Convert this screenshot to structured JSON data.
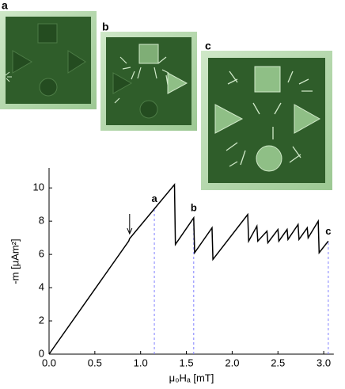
{
  "image_labels": [
    "a",
    "b",
    "c"
  ],
  "chart_data": {
    "type": "line",
    "x_label": "μ₀Hₐ [mT]",
    "y_label": "-m [μAm²]",
    "x": [
      0,
      0.87,
      0.88,
      1.37,
      1.38,
      1.58,
      1.59,
      1.78,
      1.79,
      2.17,
      2.18,
      2.27,
      2.28,
      2.38,
      2.39,
      2.5,
      2.51,
      2.6,
      2.61,
      2.72,
      2.73,
      2.82,
      2.83,
      2.94,
      2.95,
      3.05
    ],
    "values": [
      0,
      6.8,
      6.95,
      10.2,
      6.6,
      8.2,
      6.1,
      7.6,
      5.7,
      8.4,
      6.8,
      7.7,
      6.8,
      7.4,
      6.7,
      7.5,
      6.8,
      7.5,
      6.9,
      7.8,
      6.9,
      7.6,
      7.0,
      8.0,
      6.1,
      6.8
    ],
    "color": "#000000",
    "vlines": [
      {
        "x": 1.15,
        "label": "a"
      },
      {
        "x": 1.58,
        "label": "b"
      },
      {
        "x": 3.05,
        "label": "c"
      }
    ],
    "vline_color": "#8080ff",
    "arrow": {
      "x": 0.88,
      "y": 7.1
    },
    "xlim": [
      0,
      3.11
    ],
    "ylim": [
      0,
      11.2
    ],
    "xticks": [
      {
        "value": 0,
        "label": "0.0"
      },
      {
        "value": 0.5,
        "label": "0.5"
      },
      {
        "value": 1,
        "label": "1.0"
      },
      {
        "value": 1.5,
        "label": "1.5"
      },
      {
        "value": 2,
        "label": "2.0"
      },
      {
        "value": 2.5,
        "label": "2.5"
      },
      {
        "value": 3,
        "label": "3.0"
      }
    ],
    "yticks": [
      0,
      2,
      4,
      6,
      8,
      10
    ]
  }
}
